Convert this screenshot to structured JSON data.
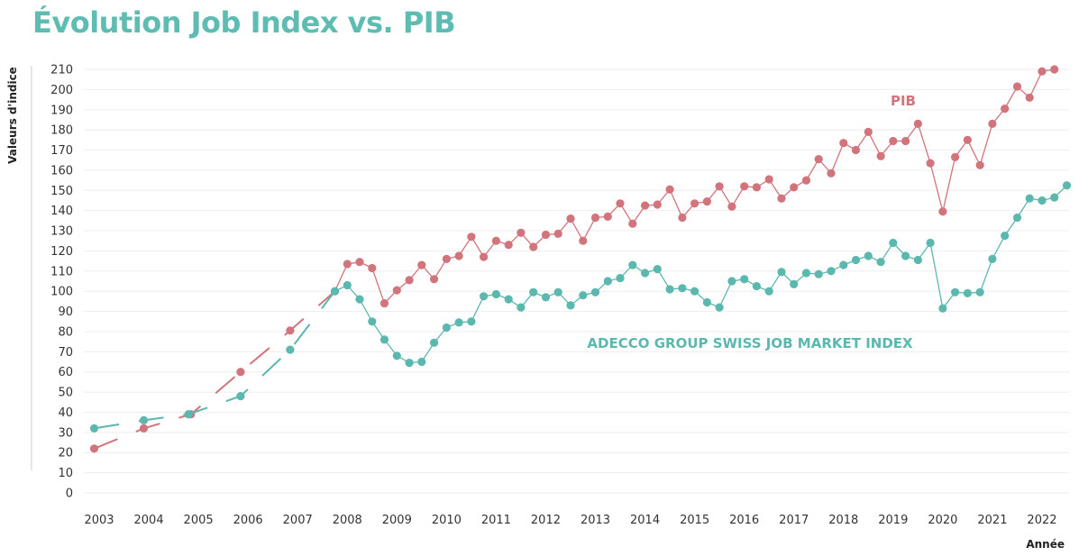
{
  "chart_data": {
    "type": "line",
    "title": "Évolution Job Index vs. PIB",
    "ylabel": "Valeurs d'indice",
    "xlabel": "Année",
    "ylim": [
      0,
      210
    ],
    "xlim": [
      2003,
      2022.3
    ],
    "yticks": [
      "0",
      "10",
      "20",
      "30",
      "40",
      "50",
      "60",
      "70",
      "80",
      "90",
      "100",
      "110",
      "120",
      "130",
      "140",
      "150",
      "160",
      "170",
      "180",
      "190",
      "200",
      "210"
    ],
    "xticks": [
      "2003",
      "2004",
      "2005",
      "2006",
      "2007",
      "2008",
      "2009",
      "2010",
      "2011",
      "2012",
      "2013",
      "2014",
      "2015",
      "2016",
      "2017",
      "2018",
      "2019",
      "2020",
      "2021",
      "2022"
    ],
    "grid": true,
    "colors": {
      "title": "#5fbcb2",
      "pib": "#d2747c",
      "job": "#5bb8ae",
      "grid": "#eeeeee",
      "axis": "#cccccc"
    },
    "series": [
      {
        "name": "PIB",
        "key": "pib",
        "dashed_until": 2007.75,
        "points": [
          [
            2002.9,
            22
          ],
          [
            2003.9,
            32
          ],
          [
            2004.85,
            39
          ],
          [
            2005.85,
            60
          ],
          [
            2006.85,
            80.5
          ],
          [
            2007.75,
            100
          ],
          [
            2008.0,
            113.5
          ],
          [
            2008.25,
            114.5
          ],
          [
            2008.5,
            111.5
          ],
          [
            2008.75,
            94
          ],
          [
            2009.0,
            100.5
          ],
          [
            2009.25,
            105.5
          ],
          [
            2009.5,
            113
          ],
          [
            2009.75,
            106
          ],
          [
            2010.0,
            116
          ],
          [
            2010.25,
            117.5
          ],
          [
            2010.5,
            127
          ],
          [
            2010.75,
            117
          ],
          [
            2011.0,
            125
          ],
          [
            2011.25,
            123
          ],
          [
            2011.5,
            129
          ],
          [
            2011.75,
            122
          ],
          [
            2012.0,
            128
          ],
          [
            2012.25,
            128.5
          ],
          [
            2012.5,
            136
          ],
          [
            2012.75,
            125
          ],
          [
            2013.0,
            136.5
          ],
          [
            2013.25,
            137
          ],
          [
            2013.5,
            143.5
          ],
          [
            2013.75,
            133.5
          ],
          [
            2014.0,
            142.5
          ],
          [
            2014.25,
            143
          ],
          [
            2014.5,
            150.5
          ],
          [
            2014.75,
            136.5
          ],
          [
            2015.0,
            143.5
          ],
          [
            2015.25,
            144.5
          ],
          [
            2015.5,
            152
          ],
          [
            2015.75,
            142
          ],
          [
            2016.0,
            152
          ],
          [
            2016.25,
            151.5
          ],
          [
            2016.5,
            155.5
          ],
          [
            2016.75,
            146
          ],
          [
            2017.0,
            151.5
          ],
          [
            2017.25,
            155
          ],
          [
            2017.5,
            165.5
          ],
          [
            2017.75,
            158.5
          ],
          [
            2018.0,
            173.5
          ],
          [
            2018.25,
            170
          ],
          [
            2018.5,
            179
          ],
          [
            2018.75,
            167
          ],
          [
            2019.0,
            174.5
          ],
          [
            2019.25,
            174.5
          ],
          [
            2019.5,
            183
          ],
          [
            2019.75,
            163.5
          ],
          [
            2020.0,
            139.5
          ],
          [
            2020.25,
            166.5
          ],
          [
            2020.5,
            175
          ],
          [
            2020.75,
            162.5
          ],
          [
            2021.0,
            183
          ],
          [
            2021.25,
            190.5
          ],
          [
            2021.5,
            201.5
          ],
          [
            2021.75,
            196
          ],
          [
            2022.0,
            209
          ],
          [
            2022.25,
            210
          ]
        ]
      },
      {
        "name": "ADECCO GROUP SWISS JOB MARKET INDEX",
        "key": "job",
        "dashed_until": 2007.75,
        "points": [
          [
            2002.9,
            32
          ],
          [
            2003.9,
            36
          ],
          [
            2004.8,
            39
          ],
          [
            2005.85,
            48
          ],
          [
            2006.85,
            71
          ],
          [
            2007.75,
            100
          ],
          [
            2008.0,
            103
          ],
          [
            2008.25,
            96
          ],
          [
            2008.5,
            85
          ],
          [
            2008.75,
            76
          ],
          [
            2009.0,
            68
          ],
          [
            2009.25,
            64.5
          ],
          [
            2009.5,
            65
          ],
          [
            2009.75,
            74.5
          ],
          [
            2010.0,
            82
          ],
          [
            2010.25,
            84.5
          ],
          [
            2010.5,
            85
          ],
          [
            2010.75,
            97.5
          ],
          [
            2011.0,
            98.5
          ],
          [
            2011.25,
            96
          ],
          [
            2011.5,
            92
          ],
          [
            2011.75,
            99.5
          ],
          [
            2012.0,
            97
          ],
          [
            2012.25,
            99.5
          ],
          [
            2012.5,
            93
          ],
          [
            2012.75,
            98
          ],
          [
            2013.0,
            99.5
          ],
          [
            2013.25,
            105
          ],
          [
            2013.5,
            106.5
          ],
          [
            2013.75,
            113
          ],
          [
            2014.0,
            109
          ],
          [
            2014.25,
            111
          ],
          [
            2014.5,
            101
          ],
          [
            2014.75,
            101.5
          ],
          [
            2015.0,
            100
          ],
          [
            2015.25,
            94.5
          ],
          [
            2015.5,
            92
          ],
          [
            2015.75,
            105
          ],
          [
            2016.0,
            106
          ],
          [
            2016.25,
            102.5
          ],
          [
            2016.5,
            100
          ],
          [
            2016.75,
            109.5
          ],
          [
            2017.0,
            103.5
          ],
          [
            2017.25,
            109
          ],
          [
            2017.5,
            108.5
          ],
          [
            2017.75,
            110
          ],
          [
            2018.0,
            113
          ],
          [
            2018.25,
            115.5
          ],
          [
            2018.5,
            117.5
          ],
          [
            2018.75,
            114.5
          ],
          [
            2019.0,
            124
          ],
          [
            2019.25,
            117.5
          ],
          [
            2019.5,
            115.5
          ],
          [
            2019.75,
            124
          ],
          [
            2020.0,
            91.5
          ],
          [
            2020.25,
            99.5
          ],
          [
            2020.5,
            99
          ],
          [
            2020.75,
            99.5
          ],
          [
            2021.0,
            116
          ],
          [
            2021.25,
            127.5
          ],
          [
            2021.5,
            136.5
          ],
          [
            2021.75,
            146
          ],
          [
            2022.0,
            145
          ],
          [
            2022.25,
            146.5
          ],
          [
            2022.5,
            152.5
          ]
        ]
      }
    ]
  }
}
